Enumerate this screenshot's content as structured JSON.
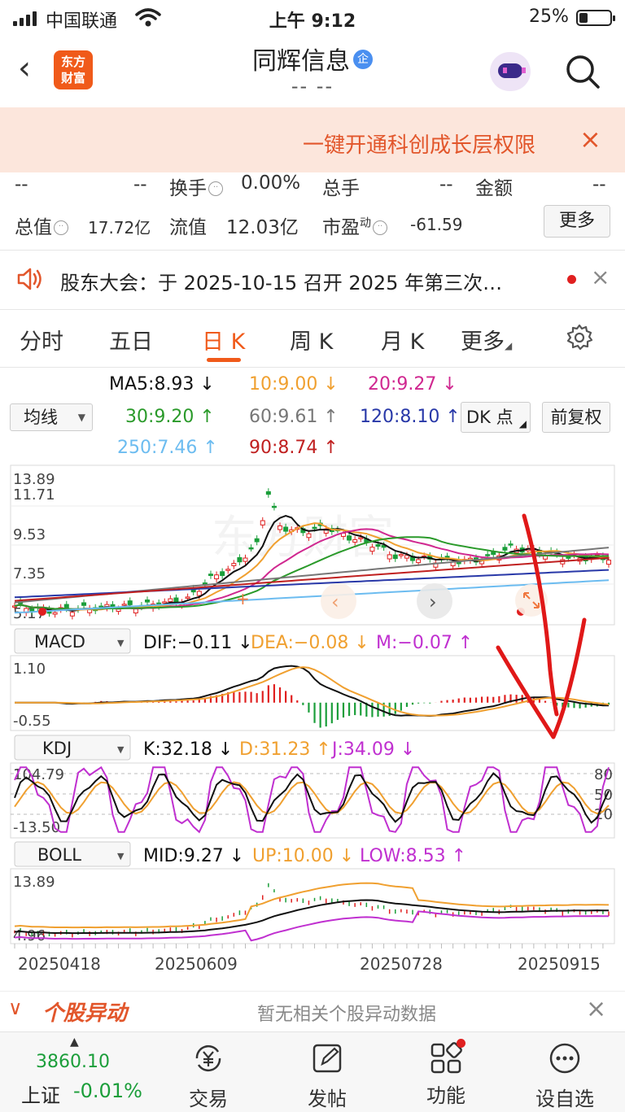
{
  "status_bar": {
    "carrier": "中国联通",
    "time": "上午 9:12",
    "battery": "25%"
  },
  "header": {
    "back": "‹",
    "logo_text_1": "东方",
    "logo_text_2": "财富",
    "title": "同辉信息",
    "title_badge": "企",
    "subtitle": "-- --"
  },
  "banner": {
    "text": "一键开通科创成长层权限",
    "close": "×"
  },
  "stats": {
    "row1": {
      "val1": "--",
      "val2": "--",
      "turnover_label": "换手",
      "turnover_value": "0.00%",
      "hands_label": "总手",
      "hands_value": "--",
      "amount_label": "金额",
      "amount_value": "--"
    },
    "row2": {
      "mktcap_label": "总值",
      "mktcap_value": "17.72亿",
      "float_label": "流值",
      "float_value": "12.03亿",
      "pe_label": "市盈",
      "pe_sup": "动",
      "pe_value": "-61.59"
    },
    "more_button": "更多"
  },
  "notice": {
    "text": "股东大会：于 2025-10-15 召开 2025 年第三次…",
    "close": "×"
  },
  "tabs": [
    {
      "label": "分时",
      "active": false
    },
    {
      "label": "五日",
      "active": false
    },
    {
      "label": "日 K",
      "active": true
    },
    {
      "label": "周 K",
      "active": false
    },
    {
      "label": "月 K",
      "active": false
    },
    {
      "label": "更多",
      "active": false
    }
  ],
  "ma": {
    "selector": "均线",
    "ma5": "MA5:8.93 ↓",
    "ma10": "10:9.00 ↓",
    "ma20": "20:9.27 ↓",
    "ma30": "30:9.20 ↑",
    "ma60": "60:9.61 ↑",
    "ma120": "120:8.10 ↑",
    "ma250": "250:7.46 ↑",
    "ma90": "90:8.74 ↑",
    "dk_button": "DK 点",
    "fq_button": "前复权"
  },
  "kline": {
    "y_labels": [
      "13.89",
      "11.71",
      "9.53",
      "7.35",
      "5.17"
    ]
  },
  "macd": {
    "selector": "MACD",
    "dif": "DIF:−0.11 ↓",
    "dea": "DEA:−0.08 ↓",
    "m": "M:−0.07 ↑",
    "y_top": "1.10",
    "y_bottom": "-0.55"
  },
  "kdj": {
    "selector": "KDJ",
    "k": "K:32.18 ↓",
    "d": "D:31.23 ↑",
    "j": "J:34.09 ↓",
    "y_top": "104.79",
    "y_bottom": "-13.50",
    "ref_80": "80",
    "ref_50": "50",
    "ref_20": "20"
  },
  "boll": {
    "selector": "BOLL",
    "mid": "MID:9.27 ↓",
    "up": "UP:10.00 ↓",
    "low": "LOW:8.53 ↑",
    "y_top": "13.89",
    "y_bottom": "4.96"
  },
  "x_dates": [
    "20250418",
    "20250609",
    "20250728",
    "20250915"
  ],
  "alert": {
    "label": "个股异动",
    "message": "暂无相关个股异动数据",
    "close": "×"
  },
  "bottom_bar": {
    "index_value": "3860.10",
    "index_name": "上证",
    "index_change": "-0.01%",
    "items": [
      {
        "label": "交易"
      },
      {
        "label": "发帖"
      },
      {
        "label": "功能"
      },
      {
        "label": "设自选"
      }
    ]
  },
  "colors": {
    "accent": "#f05a1a",
    "up": "#e02020",
    "down": "#1b9e3a",
    "ma5": "#111111",
    "ma10": "#f0a030",
    "ma20": "#d02890",
    "ma30": "#2a9a2a",
    "ma60": "#777777",
    "ma120": "#2838a8",
    "ma250": "#6cbcf0",
    "ma90": "#c02020"
  }
}
